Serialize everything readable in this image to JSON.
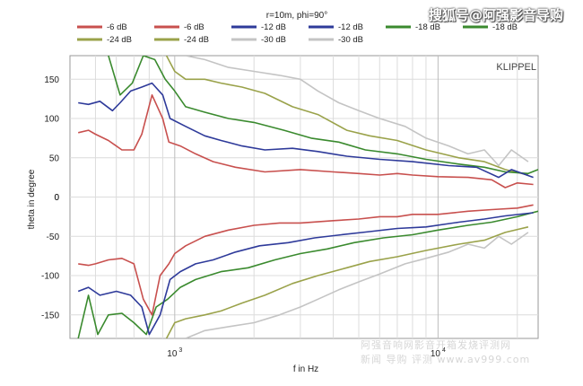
{
  "watermark_top": "搜狐号@阿强影音导购",
  "watermark_bottom": [
    "阿强音响网影音开箱发烧评测网",
    "新闻 导购 评测 www.av999.com"
  ],
  "chart_data": {
    "type": "line",
    "title": "r=10m, phi=90°",
    "brand": "KLIPPEL",
    "xlabel": "f in Hz",
    "ylabel": "theta in degree",
    "xscale": "log",
    "xlim": [
      400,
      24000
    ],
    "ylim": [
      -180,
      180
    ],
    "yticks": [
      150,
      100,
      50,
      0,
      -50,
      -100,
      -150
    ],
    "xticks": [
      {
        "value": 1000,
        "base": "10",
        "exp": "3"
      },
      {
        "value": 10000,
        "base": "10",
        "exp": "4"
      }
    ],
    "grid": true,
    "legend": [
      {
        "label": "-6 dB",
        "color": "#c8504e"
      },
      {
        "label": "-6 dB",
        "color": "#c8504e"
      },
      {
        "label": "-12 dB",
        "color": "#2e3a9a"
      },
      {
        "label": "-12 dB",
        "color": "#2e3a9a"
      },
      {
        "label": "-18 dB",
        "color": "#3a8a2e"
      },
      {
        "label": "-18 dB",
        "color": "#3a8a2e"
      },
      {
        "label": "-24 dB",
        "color": "#9aa24a"
      },
      {
        "label": "-24 dB",
        "color": "#9aa24a"
      },
      {
        "label": "-30 dB",
        "color": "#c4c4c4"
      },
      {
        "label": "-30 dB",
        "color": "#c4c4c4"
      }
    ],
    "series": [
      {
        "name": "-6 dB",
        "color": "#c8504e",
        "points": [
          [
            430,
            82
          ],
          [
            470,
            85
          ],
          [
            500,
            80
          ],
          [
            560,
            72
          ],
          [
            630,
            60
          ],
          [
            700,
            60
          ],
          [
            750,
            80
          ],
          [
            820,
            130
          ],
          [
            900,
            100
          ],
          [
            950,
            70
          ],
          [
            1050,
            65
          ],
          [
            1200,
            55
          ],
          [
            1400,
            45
          ],
          [
            1700,
            38
          ],
          [
            2200,
            32
          ],
          [
            3000,
            35
          ],
          [
            4000,
            32
          ],
          [
            5000,
            30
          ],
          [
            6000,
            28
          ],
          [
            7000,
            30
          ],
          [
            8000,
            28
          ],
          [
            10000,
            26
          ],
          [
            13000,
            25
          ],
          [
            16000,
            22
          ],
          [
            18000,
            12
          ],
          [
            20000,
            18
          ],
          [
            23000,
            16
          ]
        ]
      },
      {
        "name": "-6 dB",
        "color": "#c8504e",
        "points": [
          [
            430,
            -85
          ],
          [
            470,
            -87
          ],
          [
            500,
            -85
          ],
          [
            560,
            -80
          ],
          [
            630,
            -78
          ],
          [
            700,
            -85
          ],
          [
            760,
            -130
          ],
          [
            820,
            -150
          ],
          [
            880,
            -100
          ],
          [
            950,
            -85
          ],
          [
            1000,
            -72
          ],
          [
            1100,
            -62
          ],
          [
            1300,
            -50
          ],
          [
            1600,
            -42
          ],
          [
            2000,
            -36
          ],
          [
            2500,
            -33
          ],
          [
            3000,
            -33
          ],
          [
            4000,
            -30
          ],
          [
            5000,
            -28
          ],
          [
            6000,
            -25
          ],
          [
            7000,
            -25
          ],
          [
            8000,
            -22
          ],
          [
            10000,
            -22
          ],
          [
            13000,
            -18
          ],
          [
            16000,
            -16
          ],
          [
            20000,
            -14
          ],
          [
            23000,
            -10
          ]
        ]
      },
      {
        "name": "-12 dB",
        "color": "#2e3a9a",
        "points": [
          [
            430,
            120
          ],
          [
            470,
            118
          ],
          [
            520,
            122
          ],
          [
            580,
            110
          ],
          [
            620,
            120
          ],
          [
            680,
            135
          ],
          [
            750,
            140
          ],
          [
            820,
            145
          ],
          [
            900,
            130
          ],
          [
            960,
            100
          ],
          [
            1100,
            90
          ],
          [
            1300,
            78
          ],
          [
            1500,
            72
          ],
          [
            1800,
            65
          ],
          [
            2200,
            60
          ],
          [
            2800,
            62
          ],
          [
            3500,
            58
          ],
          [
            4500,
            52
          ],
          [
            6000,
            48
          ],
          [
            8000,
            45
          ],
          [
            11000,
            40
          ],
          [
            14000,
            38
          ],
          [
            17000,
            25
          ],
          [
            19000,
            35
          ],
          [
            23000,
            25
          ]
        ]
      },
      {
        "name": "-12 dB",
        "color": "#2e3a9a",
        "points": [
          [
            430,
            -120
          ],
          [
            470,
            -115
          ],
          [
            520,
            -125
          ],
          [
            600,
            -120
          ],
          [
            680,
            -125
          ],
          [
            750,
            -140
          ],
          [
            800,
            -175
          ],
          [
            880,
            -150
          ],
          [
            960,
            -105
          ],
          [
            1050,
            -95
          ],
          [
            1200,
            -85
          ],
          [
            1400,
            -80
          ],
          [
            1700,
            -70
          ],
          [
            2100,
            -62
          ],
          [
            2700,
            -58
          ],
          [
            3400,
            -52
          ],
          [
            4300,
            -48
          ],
          [
            5500,
            -44
          ],
          [
            7000,
            -40
          ],
          [
            9000,
            -38
          ],
          [
            12000,
            -32
          ],
          [
            15000,
            -28
          ],
          [
            18000,
            -24
          ],
          [
            23000,
            -20
          ]
        ]
      },
      {
        "name": "-18 dB",
        "color": "#3a8a2e",
        "points": [
          [
            560,
            180
          ],
          [
            620,
            130
          ],
          [
            690,
            145
          ],
          [
            760,
            180
          ],
          [
            840,
            175
          ],
          [
            920,
            150
          ],
          [
            1000,
            135
          ],
          [
            1100,
            115
          ],
          [
            1300,
            108
          ],
          [
            1600,
            100
          ],
          [
            2000,
            95
          ],
          [
            2600,
            85
          ],
          [
            3300,
            75
          ],
          [
            4200,
            70
          ],
          [
            5300,
            60
          ],
          [
            7000,
            55
          ],
          [
            9000,
            48
          ],
          [
            12000,
            42
          ],
          [
            15000,
            38
          ],
          [
            18000,
            32
          ],
          [
            22000,
            30
          ],
          [
            24000,
            35
          ]
        ]
      },
      {
        "name": "-18 dB",
        "color": "#3a8a2e",
        "points": [
          [
            430,
            -180
          ],
          [
            470,
            -125
          ],
          [
            510,
            -175
          ],
          [
            560,
            -150
          ],
          [
            630,
            -148
          ],
          [
            700,
            -160
          ],
          [
            780,
            -175
          ],
          [
            850,
            -140
          ],
          [
            940,
            -130
          ],
          [
            1050,
            -115
          ],
          [
            1200,
            -105
          ],
          [
            1500,
            -95
          ],
          [
            1900,
            -90
          ],
          [
            2400,
            -80
          ],
          [
            3000,
            -72
          ],
          [
            3800,
            -66
          ],
          [
            4800,
            -58
          ],
          [
            6200,
            -52
          ],
          [
            8000,
            -48
          ],
          [
            10000,
            -42
          ],
          [
            13000,
            -36
          ],
          [
            16000,
            -32
          ],
          [
            20000,
            -25
          ],
          [
            24000,
            -18
          ]
        ]
      },
      {
        "name": "-24 dB",
        "color": "#9aa24a",
        "points": [
          [
            930,
            180
          ],
          [
            1000,
            160
          ],
          [
            1100,
            150
          ],
          [
            1300,
            150
          ],
          [
            1500,
            145
          ],
          [
            1800,
            140
          ],
          [
            2200,
            132
          ],
          [
            2800,
            115
          ],
          [
            3500,
            105
          ],
          [
            4500,
            85
          ],
          [
            5500,
            78
          ],
          [
            7000,
            72
          ],
          [
            9000,
            60
          ],
          [
            12000,
            50
          ],
          [
            15000,
            45
          ],
          [
            18000,
            35
          ],
          [
            22000,
            28
          ]
        ]
      },
      {
        "name": "-24 dB",
        "color": "#9aa24a",
        "points": [
          [
            930,
            -180
          ],
          [
            1000,
            -160
          ],
          [
            1100,
            -155
          ],
          [
            1300,
            -150
          ],
          [
            1500,
            -145
          ],
          [
            1800,
            -135
          ],
          [
            2200,
            -125
          ],
          [
            2800,
            -110
          ],
          [
            3500,
            -100
          ],
          [
            4500,
            -90
          ],
          [
            5500,
            -82
          ],
          [
            7000,
            -76
          ],
          [
            9000,
            -68
          ],
          [
            12000,
            -60
          ],
          [
            15000,
            -55
          ],
          [
            18000,
            -45
          ],
          [
            22000,
            -38
          ]
        ]
      },
      {
        "name": "-30 dB",
        "color": "#c4c4c4",
        "points": [
          [
            1100,
            180
          ],
          [
            1300,
            175
          ],
          [
            1600,
            165
          ],
          [
            2000,
            160
          ],
          [
            2500,
            155
          ],
          [
            3000,
            150
          ],
          [
            3500,
            135
          ],
          [
            4200,
            120
          ],
          [
            5000,
            110
          ],
          [
            6000,
            100
          ],
          [
            7500,
            90
          ],
          [
            9000,
            75
          ],
          [
            11000,
            65
          ],
          [
            13000,
            55
          ],
          [
            15000,
            60
          ],
          [
            17000,
            40
          ],
          [
            19000,
            60
          ],
          [
            22000,
            45
          ]
        ]
      },
      {
        "name": "-30 dB",
        "color": "#c4c4c4",
        "points": [
          [
            1100,
            -180
          ],
          [
            1300,
            -170
          ],
          [
            1600,
            -165
          ],
          [
            2000,
            -160
          ],
          [
            2500,
            -150
          ],
          [
            3000,
            -140
          ],
          [
            3500,
            -130
          ],
          [
            4200,
            -118
          ],
          [
            5000,
            -108
          ],
          [
            6000,
            -98
          ],
          [
            7500,
            -85
          ],
          [
            9000,
            -78
          ],
          [
            11000,
            -70
          ],
          [
            13000,
            -60
          ],
          [
            15000,
            -65
          ],
          [
            17000,
            -50
          ],
          [
            19000,
            -60
          ],
          [
            22000,
            -45
          ]
        ]
      }
    ]
  }
}
